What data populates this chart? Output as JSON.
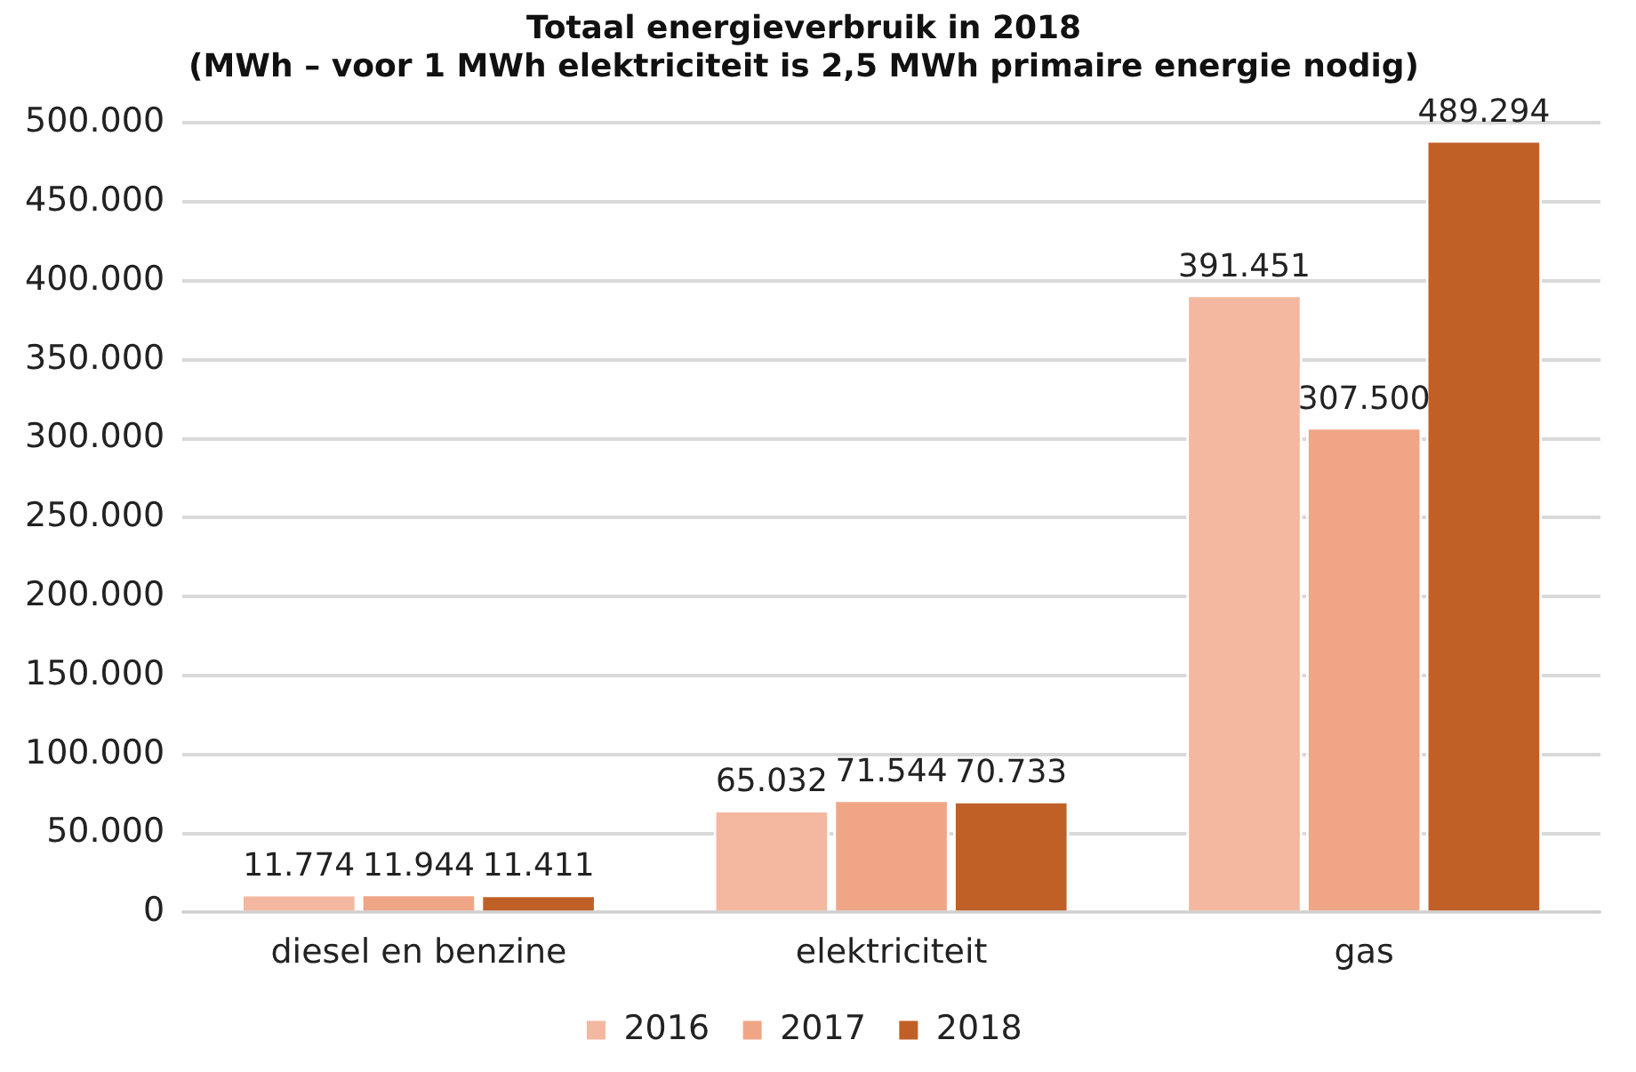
{
  "chart_data": {
    "type": "bar",
    "title": "Totaal energieverbruik in 2018\n(MWh – voor 1 MWh elektriciteit is 2,5 MWh primaire energie nodig)",
    "categories": [
      "diesel en benzine",
      "elektriciteit",
      "gas"
    ],
    "series": [
      {
        "name": "2016",
        "color": "#f4b8a0",
        "values": [
          11774,
          65032,
          391451
        ],
        "value_labels": [
          "11.774",
          "65.032",
          "391.451"
        ]
      },
      {
        "name": "2017",
        "color": "#f0a686",
        "values": [
          11944,
          71544,
          307500
        ],
        "value_labels": [
          "11.944",
          "71.544",
          "307.500"
        ]
      },
      {
        "name": "2018",
        "color": "#c06027",
        "values": [
          11411,
          70733,
          489294
        ],
        "value_labels": [
          "11.411",
          "70.733",
          "489.294"
        ]
      }
    ],
    "ylim": [
      0,
      500000
    ],
    "yticks": [
      {
        "value": 0,
        "label": "0"
      },
      {
        "value": 50000,
        "label": "50.000"
      },
      {
        "value": 100000,
        "label": "100.000"
      },
      {
        "value": 150000,
        "label": "150.000"
      },
      {
        "value": 200000,
        "label": "200.000"
      },
      {
        "value": 250000,
        "label": "250.000"
      },
      {
        "value": 300000,
        "label": "300.000"
      },
      {
        "value": 350000,
        "label": "350.000"
      },
      {
        "value": 400000,
        "label": "400.000"
      },
      {
        "value": 450000,
        "label": "450.000"
      },
      {
        "value": 500000,
        "label": "500.000"
      }
    ],
    "grid": "y",
    "legend": "bottom"
  }
}
